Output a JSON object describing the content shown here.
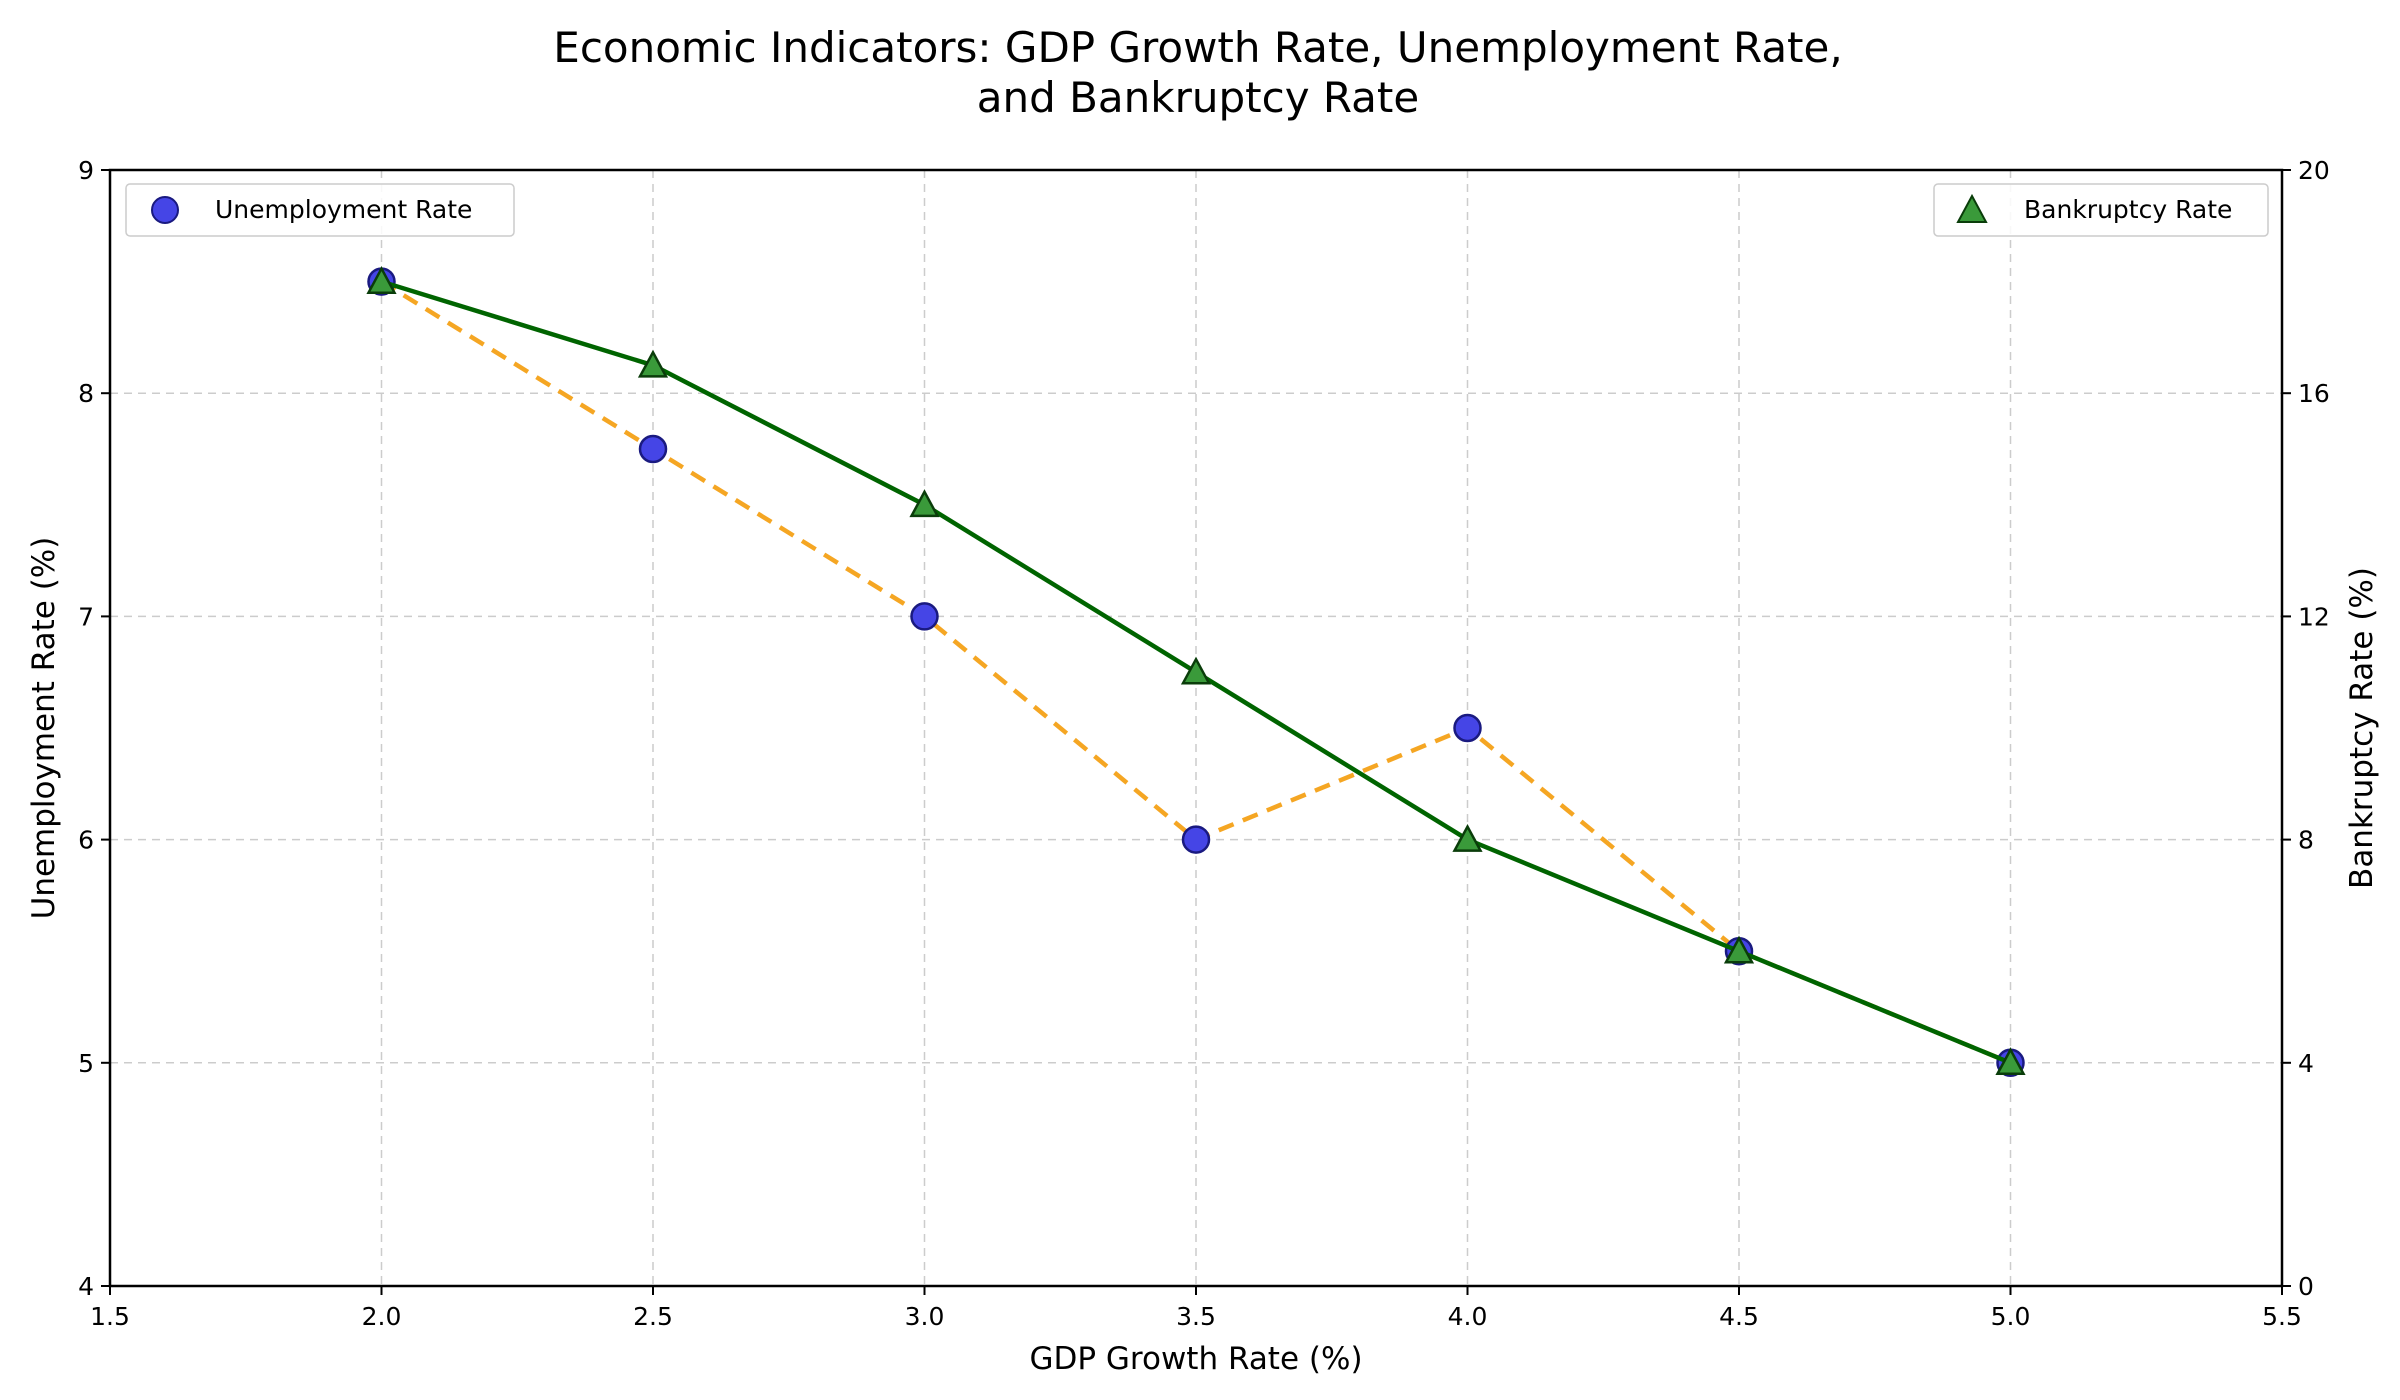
{
  "chart_data": {
    "type": "scatter",
    "title": "Economic Indicators: GDP Growth Rate, Unemployment Rate,",
    "title_line2": "and Bankruptcy Rate",
    "xlabel": "GDP Growth Rate (%)",
    "ylabel": "Unemployment Rate (%)",
    "y2label": "Bankruptcy Rate (%)",
    "xlim": [
      1.5,
      5.5
    ],
    "ylim": [
      4,
      9
    ],
    "y2lim": [
      0,
      20
    ],
    "x_ticks": [
      "1.5",
      "2.0",
      "2.5",
      "3.0",
      "3.5",
      "4.0",
      "4.5",
      "5.0",
      "5.5"
    ],
    "y_ticks": [
      "4",
      "5",
      "6",
      "7",
      "8",
      "9"
    ],
    "y2_ticks": [
      "0",
      "4",
      "8",
      "12",
      "16",
      "20"
    ],
    "grid": true,
    "x": [
      2.0,
      2.5,
      3.0,
      3.5,
      4.0,
      4.5,
      5.0
    ],
    "series": [
      {
        "name": "Unemployment Rate",
        "axis": "left",
        "values": [
          8.5,
          7.75,
          7.0,
          6.0,
          6.5,
          5.5,
          5.0
        ],
        "marker": "circle",
        "marker_color": "#4545e6",
        "marker_edge": "#1a1a80",
        "line_color": "#f5a623",
        "line_style": "dashed",
        "legend_position": "top-left"
      },
      {
        "name": "Bankruptcy Rate",
        "axis": "right",
        "values": [
          18,
          16.5,
          14,
          11,
          8,
          6,
          4
        ],
        "marker": "triangle",
        "marker_color": "#3a9a3a",
        "marker_edge": "#0a3d0a",
        "line_color": "#006400",
        "line_style": "solid",
        "legend_position": "top-right"
      }
    ]
  }
}
